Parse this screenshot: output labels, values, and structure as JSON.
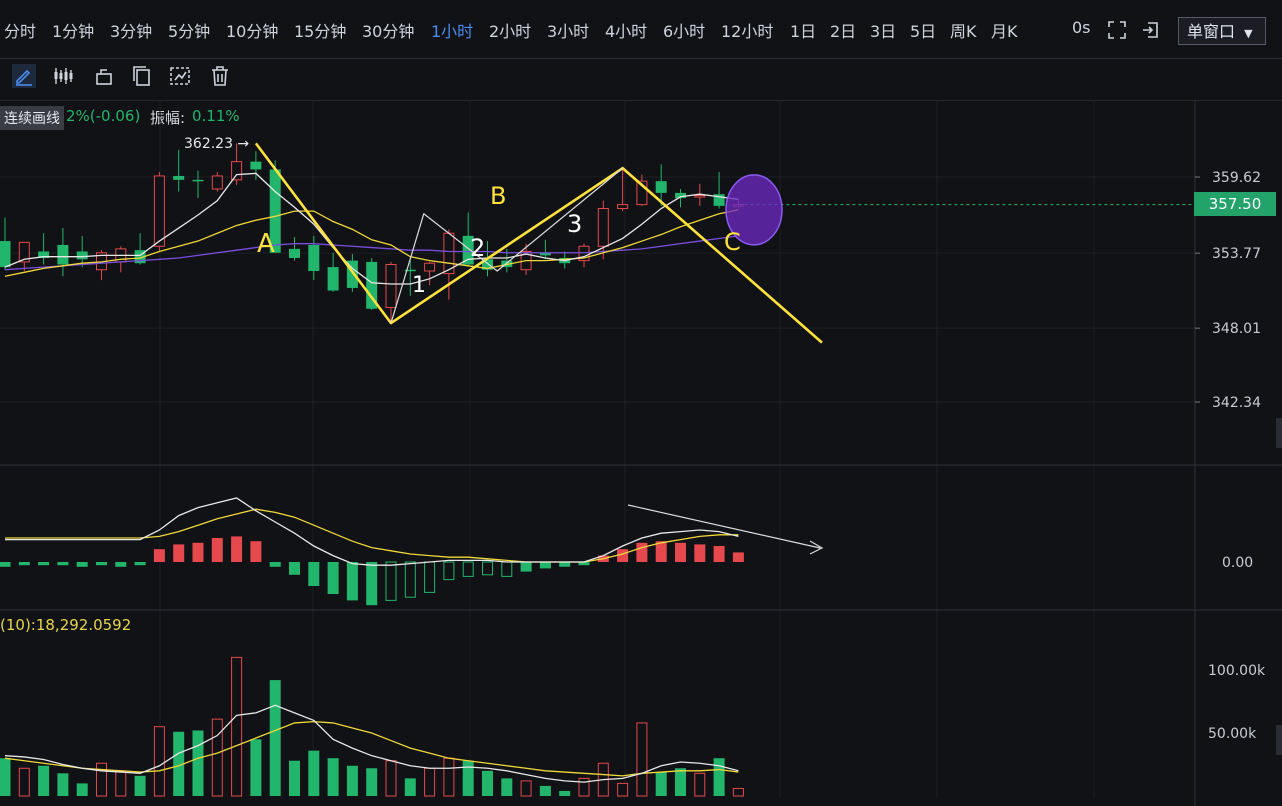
{
  "toolbar": {
    "timeframes": [
      "分时",
      "1分钟",
      "3分钟",
      "5分钟",
      "10分钟",
      "15分钟",
      "30分钟",
      "1小时",
      "2小时",
      "3小时",
      "4小时",
      "6小时",
      "12小时",
      "1日",
      "2日",
      "3日",
      "5日",
      "周K",
      "月K"
    ],
    "active": "1小时",
    "refresh": "0s",
    "window_select": "单窗口"
  },
  "drawing_tools": [
    "pen-icon",
    "candles-icon",
    "lock-icon",
    "copy-icon",
    "settings-icon",
    "trash-icon"
  ],
  "info": {
    "mode_label": "连续画线",
    "change": "2%(-0.06)",
    "amplitude_label": "振幅:",
    "amplitude_value": "0.11%"
  },
  "volume_info": "(10):18,292.0592",
  "colors": {
    "up": "#e5484d",
    "down": "#22b56c",
    "ma5": "#e8e8e8",
    "ma10": "#f0d83a",
    "ma30": "#7a4fe0",
    "annotation": "#ffe23a"
  },
  "chart_data": [
    {
      "type": "candlestick",
      "title": "",
      "y_ticks": [
        359.62,
        353.77,
        348.01,
        342.34
      ],
      "ylim": [
        338.0,
        364.5
      ],
      "current_price": 357.5,
      "max_marker": "362.23",
      "candles": [
        {
          "o": 354.7,
          "h": 356.5,
          "l": 352.5,
          "c": 352.7
        },
        {
          "o": 353.1,
          "h": 354.6,
          "l": 352.4,
          "c": 354.6
        },
        {
          "o": 353.9,
          "h": 355.3,
          "l": 352.9,
          "c": 353.4
        },
        {
          "o": 354.4,
          "h": 355.7,
          "l": 352.0,
          "c": 352.9
        },
        {
          "o": 353.9,
          "h": 355.1,
          "l": 352.7,
          "c": 353.3
        },
        {
          "o": 352.5,
          "h": 354.0,
          "l": 351.7,
          "c": 353.8
        },
        {
          "o": 353.1,
          "h": 354.3,
          "l": 352.3,
          "c": 354.1
        },
        {
          "o": 354.0,
          "h": 355.3,
          "l": 352.9,
          "c": 353.0
        },
        {
          "o": 354.3,
          "h": 360.0,
          "l": 353.9,
          "c": 359.7
        },
        {
          "o": 359.7,
          "h": 361.7,
          "l": 358.5,
          "c": 359.4
        },
        {
          "o": 359.4,
          "h": 360.1,
          "l": 358.0,
          "c": 359.3
        },
        {
          "o": 358.7,
          "h": 360.0,
          "l": 358.5,
          "c": 359.7
        },
        {
          "o": 359.4,
          "h": 362.2,
          "l": 359.0,
          "c": 360.8
        },
        {
          "o": 360.8,
          "h": 361.6,
          "l": 359.4,
          "c": 360.2
        },
        {
          "o": 360.2,
          "h": 360.9,
          "l": 353.8,
          "c": 353.8
        },
        {
          "o": 354.1,
          "h": 355.0,
          "l": 353.2,
          "c": 353.4
        },
        {
          "o": 354.4,
          "h": 355.1,
          "l": 351.7,
          "c": 352.4
        },
        {
          "o": 352.7,
          "h": 353.8,
          "l": 350.8,
          "c": 350.9
        },
        {
          "o": 353.2,
          "h": 353.7,
          "l": 350.8,
          "c": 351.1
        },
        {
          "o": 353.1,
          "h": 353.4,
          "l": 349.4,
          "c": 349.5
        },
        {
          "o": 349.6,
          "h": 353.1,
          "l": 348.4,
          "c": 352.9
        },
        {
          "o": 352.5,
          "h": 353.2,
          "l": 350.5,
          "c": 352.4
        },
        {
          "o": 352.4,
          "h": 353.1,
          "l": 351.3,
          "c": 353.0
        },
        {
          "o": 352.2,
          "h": 355.6,
          "l": 350.2,
          "c": 355.3
        },
        {
          "o": 355.1,
          "h": 356.9,
          "l": 352.8,
          "c": 352.9
        },
        {
          "o": 353.3,
          "h": 354.7,
          "l": 352.0,
          "c": 352.5
        },
        {
          "o": 353.2,
          "h": 354.1,
          "l": 352.3,
          "c": 352.7
        },
        {
          "o": 352.5,
          "h": 354.5,
          "l": 352.1,
          "c": 353.9
        },
        {
          "o": 353.8,
          "h": 354.8,
          "l": 353.3,
          "c": 353.6
        },
        {
          "o": 353.4,
          "h": 353.9,
          "l": 352.6,
          "c": 353.0
        },
        {
          "o": 353.2,
          "h": 354.5,
          "l": 352.7,
          "c": 354.3
        },
        {
          "o": 354.3,
          "h": 357.8,
          "l": 353.3,
          "c": 357.2
        },
        {
          "o": 357.2,
          "h": 360.3,
          "l": 357.0,
          "c": 357.5
        },
        {
          "o": 357.5,
          "h": 359.8,
          "l": 357.4,
          "c": 359.3
        },
        {
          "o": 359.3,
          "h": 360.6,
          "l": 357.4,
          "c": 358.4
        },
        {
          "o": 358.4,
          "h": 358.7,
          "l": 357.3,
          "c": 358.0
        },
        {
          "o": 358.1,
          "h": 359.1,
          "l": 357.4,
          "c": 358.2
        },
        {
          "o": 358.3,
          "h": 360.0,
          "l": 357.2,
          "c": 357.4
        },
        {
          "o": 357.5,
          "h": 357.9,
          "l": 357.2,
          "c": 357.5
        }
      ],
      "ma5": [
        352.7,
        353.3,
        353.5,
        353.5,
        353.5,
        353.6,
        353.6,
        353.6,
        354.7,
        355.7,
        356.7,
        357.8,
        359.8,
        359.9,
        358.5,
        357.3,
        356.0,
        354.2,
        352.6,
        351.5,
        351.4,
        351.4,
        351.8,
        352.5,
        353.3,
        353.4,
        353.4,
        353.7,
        353.4,
        353.2,
        353.5,
        354.2,
        354.9,
        356.0,
        357.2,
        358.1,
        358.3,
        358.1,
        357.9
      ],
      "ma10": [
        352.0,
        352.3,
        352.6,
        352.8,
        353.0,
        353.1,
        353.3,
        353.4,
        353.9,
        354.3,
        354.7,
        355.3,
        355.9,
        356.3,
        356.6,
        357.0,
        357.0,
        356.2,
        355.6,
        354.8,
        354.4,
        353.5,
        353.2,
        353.0,
        352.8,
        352.6,
        352.9,
        353.2,
        353.2,
        353.3,
        353.4,
        353.8,
        354.2,
        354.7,
        355.2,
        355.8,
        356.3,
        356.8,
        357.1
      ],
      "ma30": [
        352.5,
        352.6,
        352.7,
        352.8,
        352.9,
        353.0,
        353.1,
        353.2,
        353.3,
        353.4,
        353.6,
        353.8,
        354.0,
        354.2,
        354.4,
        354.5,
        354.5,
        354.4,
        354.3,
        354.2,
        354.1,
        354.0,
        354.0,
        353.9,
        353.9,
        353.9,
        353.8,
        353.8,
        353.8,
        353.8,
        353.8,
        353.9,
        354.0,
        354.1,
        354.3,
        354.5,
        354.7,
        354.9,
        355.1
      ],
      "annotations": [
        "A",
        "B",
        "C",
        "1",
        "2",
        "3"
      ]
    },
    {
      "type": "bar",
      "title": "",
      "y_ticks": [
        0.0
      ],
      "macd": [
        -0.3,
        -0.2,
        -0.2,
        -0.2,
        -0.3,
        -0.2,
        -0.3,
        -0.2,
        0.8,
        1.1,
        1.2,
        1.5,
        1.6,
        1.3,
        -0.3,
        -0.8,
        -1.5,
        -2.0,
        -2.4,
        -2.7,
        -2.4,
        -2.2,
        -1.9,
        -1.1,
        -0.9,
        -0.8,
        -0.9,
        -0.6,
        -0.4,
        -0.3,
        -0.2,
        0.4,
        0.8,
        1.2,
        1.3,
        1.2,
        1.1,
        1.0,
        0.6
      ],
      "dif": [
        1.4,
        1.4,
        1.4,
        1.4,
        1.4,
        1.4,
        1.4,
        1.4,
        2.0,
        2.9,
        3.4,
        3.7,
        4.0,
        3.2,
        2.5,
        1.8,
        1.0,
        0.4,
        -0.1,
        -0.2,
        -0.2,
        -0.1,
        0.0,
        0.1,
        0.1,
        0.1,
        0.0,
        0.0,
        0.0,
        0.0,
        0.0,
        0.4,
        1.0,
        1.5,
        1.8,
        1.9,
        2.0,
        1.9,
        1.6
      ],
      "dea": [
        1.5,
        1.5,
        1.5,
        1.5,
        1.5,
        1.5,
        1.5,
        1.5,
        1.6,
        1.9,
        2.3,
        2.7,
        3.0,
        3.3,
        3.1,
        2.8,
        2.3,
        1.8,
        1.3,
        0.9,
        0.7,
        0.5,
        0.4,
        0.3,
        0.3,
        0.2,
        0.1,
        0.0,
        0.0,
        0.0,
        0.0,
        0.2,
        0.5,
        0.9,
        1.2,
        1.4,
        1.6,
        1.7,
        1.7
      ]
    },
    {
      "type": "bar",
      "title": "",
      "y_ticks": [
        "100.00k",
        "50.00k"
      ],
      "volume": [
        30000,
        22000,
        24000,
        18000,
        10000,
        26000,
        20000,
        16000,
        55000,
        51000,
        52000,
        61000,
        110000,
        45000,
        92000,
        28000,
        36000,
        30000,
        24000,
        22000,
        28000,
        14000,
        22000,
        30000,
        28000,
        20000,
        14000,
        12000,
        8000,
        4000,
        14000,
        26000,
        10000,
        58000,
        19000,
        22000,
        18000,
        30000,
        6000
      ],
      "vol_ma5": [
        32000,
        31000,
        29000,
        25000,
        22000,
        20000,
        19000,
        18000,
        24000,
        34000,
        40000,
        48000,
        64000,
        66000,
        72000,
        66000,
        60000,
        45000,
        38000,
        32000,
        28000,
        24000,
        22000,
        22000,
        23000,
        22000,
        20000,
        17000,
        14000,
        12000,
        11000,
        13000,
        14000,
        18000,
        24000,
        27000,
        26000,
        24000,
        20000
      ],
      "vol_ma10": [
        30000,
        28000,
        26000,
        24000,
        22000,
        21000,
        20000,
        19000,
        20000,
        24000,
        30000,
        34000,
        40000,
        46000,
        52000,
        58000,
        59000,
        58000,
        54000,
        50000,
        44000,
        38000,
        34000,
        30000,
        28000,
        26000,
        24000,
        22000,
        20000,
        19000,
        18000,
        17000,
        16000,
        18000,
        19000,
        20000,
        20000,
        21000,
        19000
      ]
    }
  ]
}
